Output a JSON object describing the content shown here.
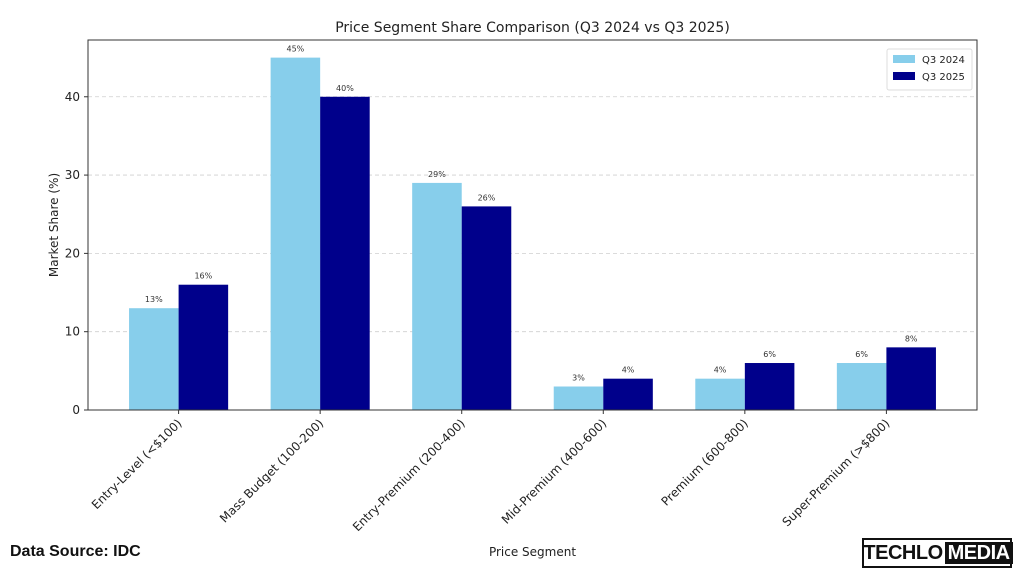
{
  "chart_data": {
    "type": "bar",
    "title": "Price Segment Share Comparison (Q3 2024 vs Q3 2025)",
    "xlabel": "Price Segment",
    "ylabel": "Market Share (%)",
    "categories": [
      "Entry-Level (<$100)",
      "Mass Budget (100-200)",
      "Entry-Premium (200-400)",
      "Mid-Premium (400-600)",
      "Premium (600-800)",
      "Super-Premium (>$800)"
    ],
    "series": [
      {
        "name": "Q3 2024",
        "values": [
          13,
          45,
          29,
          3,
          4,
          6
        ],
        "labels": [
          "13%",
          "45%",
          "29%",
          "3%",
          "4%",
          "6%"
        ],
        "color": "#87ceeb"
      },
      {
        "name": "Q3 2025",
        "values": [
          16,
          40,
          26,
          4,
          6,
          8
        ],
        "labels": [
          "16%",
          "40%",
          "26%",
          "4%",
          "6%",
          "8%"
        ],
        "color": "#00008b"
      }
    ],
    "ylim": [
      0,
      47.25
    ],
    "yticks": [
      0,
      10,
      20,
      30,
      40
    ],
    "grid": "y dashed",
    "legend": "top-right"
  },
  "footer": {
    "source": "Data Source: IDC",
    "logo_left": "TECHLO",
    "logo_right": "MEDIA"
  }
}
